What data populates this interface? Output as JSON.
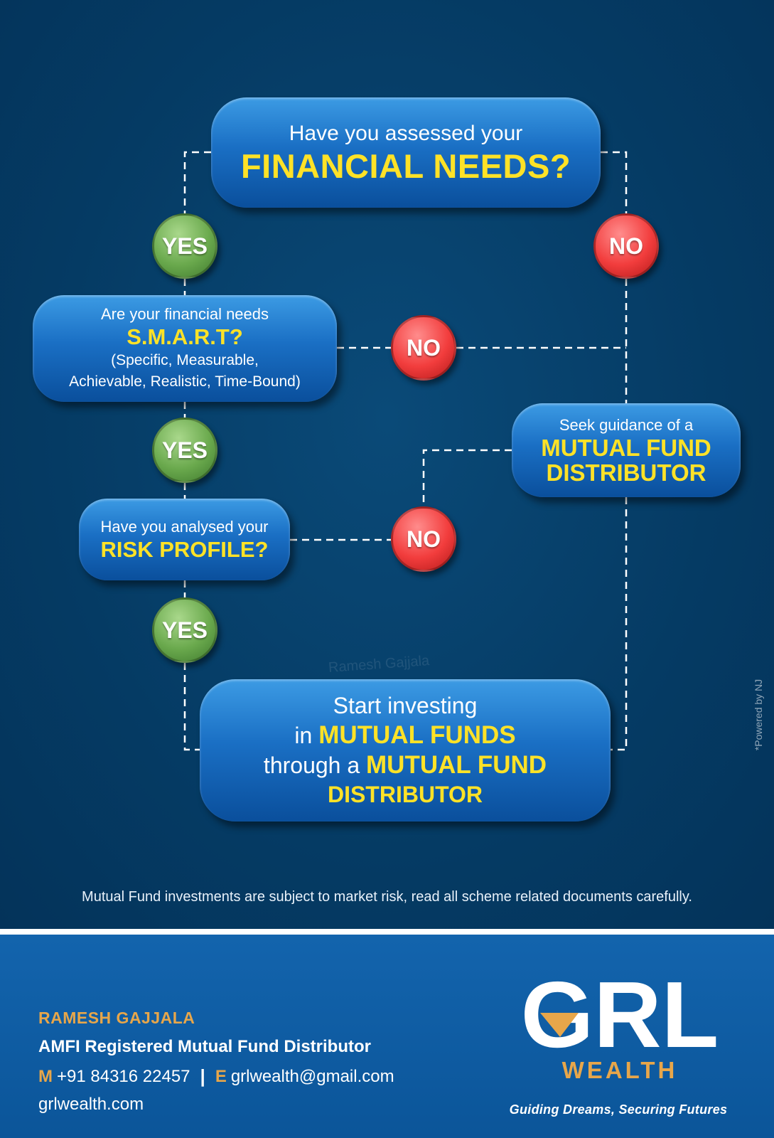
{
  "flowchart": {
    "q1": {
      "pre": "Have you assessed your",
      "highlight": "FINANCIAL NEEDS?"
    },
    "q2": {
      "pre": "Are your financial needs",
      "highlight": "S.M.A.R.T?",
      "sub1": "(Specific, Measurable,",
      "sub2": "Achievable, Realistic, Time-Bound)"
    },
    "q3": {
      "pre": "Have you analysed your",
      "highlight": "RISK PROFILE?"
    },
    "guidance": {
      "pre": "Seek guidance of a",
      "highlight1": "MUTUAL FUND",
      "highlight2": "DISTRIBUTOR"
    },
    "result": {
      "line1": "Start investing",
      "line2_pre": "in",
      "line2_hl": "MUTUAL FUNDS",
      "line3_pre": "through a",
      "line3_hl": "MUTUAL FUND",
      "line4_hl": "DISTRIBUTOR"
    },
    "yes_label": "YES",
    "no_label": "NO"
  },
  "watermark": "Ramesh Gajjala",
  "powered_by": "*Powered by NJ",
  "disclaimer": "Mutual Fund investments are subject to market risk, read all scheme related documents carefully.",
  "footer": {
    "name": "RAMESH GAJJALA",
    "role": "AMFI Registered  Mutual Fund Distributor",
    "mobile_label": "M",
    "mobile": "+91 84316 22457",
    "separator": "|",
    "email_label": "E",
    "email": "grlwealth@gmail.com",
    "website": "grlwealth.com",
    "logo_text": "GRL",
    "logo_sub": "WEALTH",
    "tagline": "Guiding Dreams, Securing Futures"
  },
  "colors": {
    "background": "#053b64",
    "node_blue": "#1a6fc4",
    "highlight_yellow": "#ffe227",
    "yes_green": "#6aa94d",
    "no_red": "#f23d3d",
    "footer_blue": "#1364ad",
    "accent_gold": "#e7a64a"
  }
}
